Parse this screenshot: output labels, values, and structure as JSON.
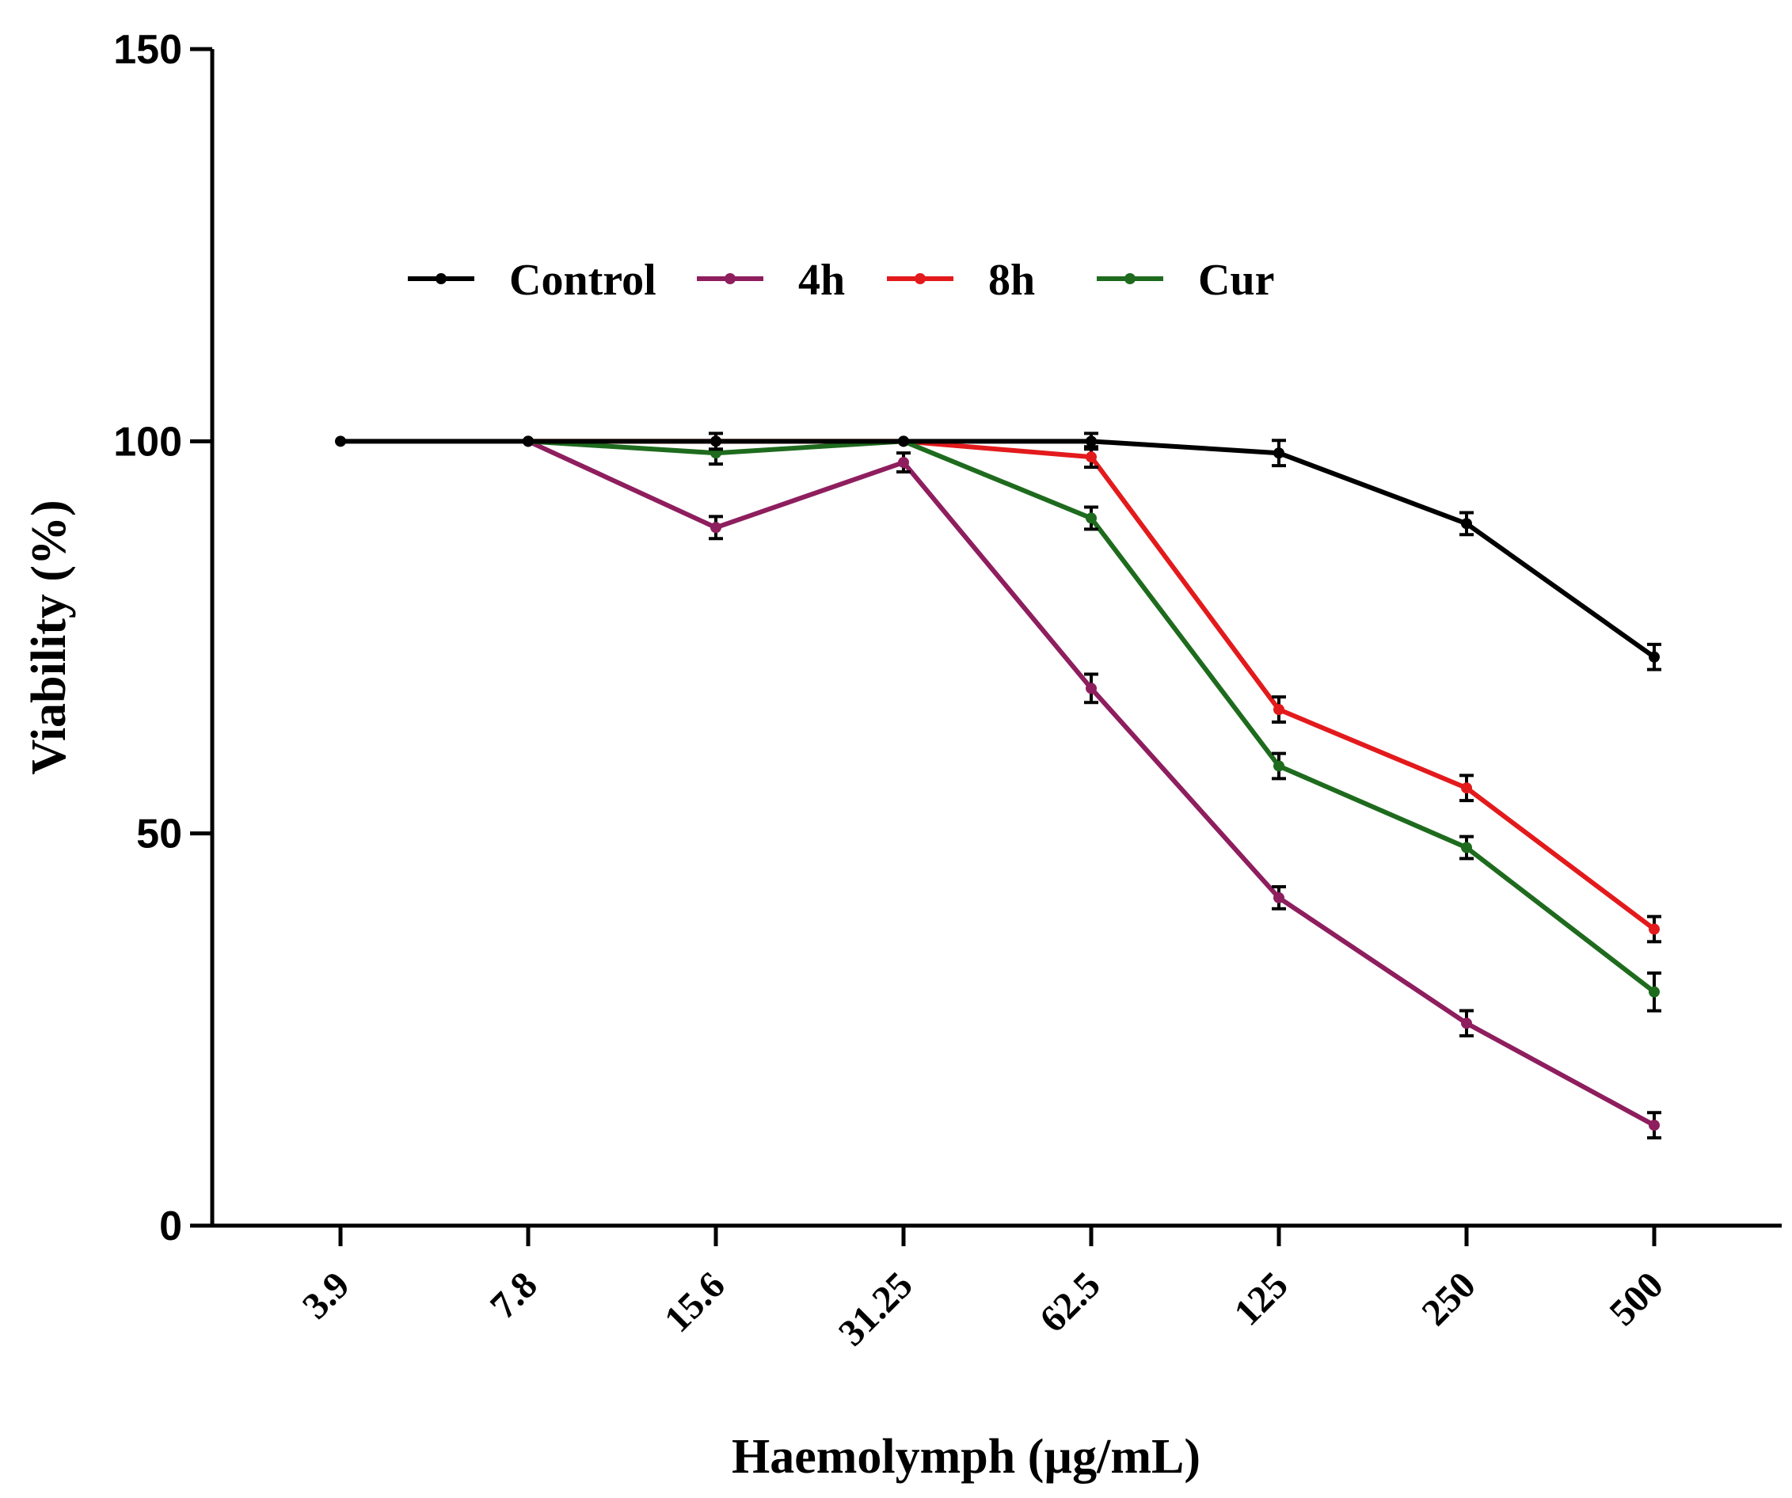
{
  "chart_data": {
    "type": "line",
    "title": "",
    "xlabel": "Haemolymph (µg/mL)",
    "ylabel": "Viability (%)",
    "categories": [
      "3.9",
      "7.8",
      "15.6",
      "31.25",
      "62.5",
      "125",
      "250",
      "500"
    ],
    "ylim": [
      0,
      150
    ],
    "yticks": [
      "0",
      "50",
      "100",
      "150"
    ],
    "grid": false,
    "legend_position": "top",
    "error_bars": true,
    "series": [
      {
        "name": "Control",
        "color": "#000000",
        "values": [
          100,
          100,
          100,
          100,
          100,
          98.5,
          89.5,
          72.5
        ],
        "errors": [
          0,
          0,
          0.6,
          0,
          0.6,
          1.2,
          1.0,
          1.2
        ]
      },
      {
        "name": "4h",
        "color": "#8e1e5e",
        "values": [
          null,
          100,
          89,
          97.3,
          68.5,
          41.8,
          25.8,
          12.8
        ],
        "errors": [
          0,
          0,
          1.0,
          0.8,
          1.4,
          1.0,
          1.2,
          1.2
        ]
      },
      {
        "name": "8h",
        "color": "#e31a1c",
        "values": [
          null,
          100,
          100,
          100,
          98,
          65.8,
          55.8,
          37.8
        ],
        "errors": [
          0,
          0,
          0,
          0,
          0.9,
          1.2,
          1.2,
          1.2
        ]
      },
      {
        "name": "Cur",
        "color": "#1e6b1e",
        "values": [
          null,
          100,
          98.5,
          100,
          90.2,
          58.6,
          48.2,
          29.8
        ],
        "errors": [
          0,
          0,
          1.0,
          0,
          1.0,
          1.2,
          1.0,
          2.0
        ]
      }
    ]
  }
}
